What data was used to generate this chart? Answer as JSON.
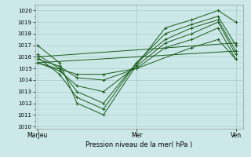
{
  "title": "",
  "xlabel": "Pression niveau de la mer( hPa )",
  "ylabel": "",
  "bg_color": "#cce8e8",
  "grid_major_color": "#aacccc",
  "grid_minor_color": "#bbdddd",
  "line_color": "#1a5c1a",
  "ylim": [
    1009.8,
    1020.5
  ],
  "yticks": [
    1010,
    1011,
    1012,
    1013,
    1014,
    1015,
    1016,
    1017,
    1018,
    1019,
    1020
  ],
  "xtick_labels": [
    "MarJeu",
    "Mer",
    "Ven"
  ],
  "xtick_positions": [
    0.0,
    0.45,
    0.9
  ],
  "lines": [
    {
      "x": [
        0.0,
        0.1,
        0.18,
        0.3,
        0.45,
        0.58,
        0.7,
        0.82,
        0.9
      ],
      "y": [
        1017.0,
        1015.5,
        1012.0,
        1011.0,
        1015.3,
        1018.5,
        1019.2,
        1020.0,
        1019.0
      ]
    },
    {
      "x": [
        0.0,
        0.1,
        0.18,
        0.3,
        0.45,
        0.58,
        0.7,
        0.82,
        0.9
      ],
      "y": [
        1016.0,
        1014.5,
        1012.5,
        1011.5,
        1015.5,
        1018.0,
        1018.8,
        1019.5,
        1017.0
      ]
    },
    {
      "x": [
        0.0,
        0.1,
        0.18,
        0.3,
        0.45,
        0.58,
        0.7,
        0.82,
        0.9
      ],
      "y": [
        1016.2,
        1015.0,
        1013.0,
        1012.0,
        1015.5,
        1017.5,
        1018.5,
        1019.2,
        1016.5
      ]
    },
    {
      "x": [
        0.0,
        0.1,
        0.18,
        0.3,
        0.45,
        0.58,
        0.7,
        0.82,
        0.9
      ],
      "y": [
        1015.5,
        1014.8,
        1013.5,
        1013.0,
        1015.2,
        1017.2,
        1018.0,
        1019.0,
        1016.2
      ]
    },
    {
      "x": [
        0.0,
        0.1,
        0.18,
        0.3,
        0.45,
        0.58,
        0.7,
        0.82,
        0.9
      ],
      "y": [
        1015.8,
        1015.2,
        1014.2,
        1014.0,
        1015.0,
        1016.8,
        1017.5,
        1018.5,
        1015.8
      ]
    },
    {
      "x": [
        0.0,
        0.18,
        0.3,
        0.45,
        0.7,
        0.82,
        0.9
      ],
      "y": [
        1015.5,
        1014.5,
        1014.5,
        1015.0,
        1016.8,
        1017.5,
        1015.8
      ]
    },
    {
      "x": [
        0.0,
        0.9
      ],
      "y": [
        1016.0,
        1017.2
      ]
    },
    {
      "x": [
        0.0,
        0.9
      ],
      "y": [
        1015.5,
        1016.5
      ]
    }
  ]
}
